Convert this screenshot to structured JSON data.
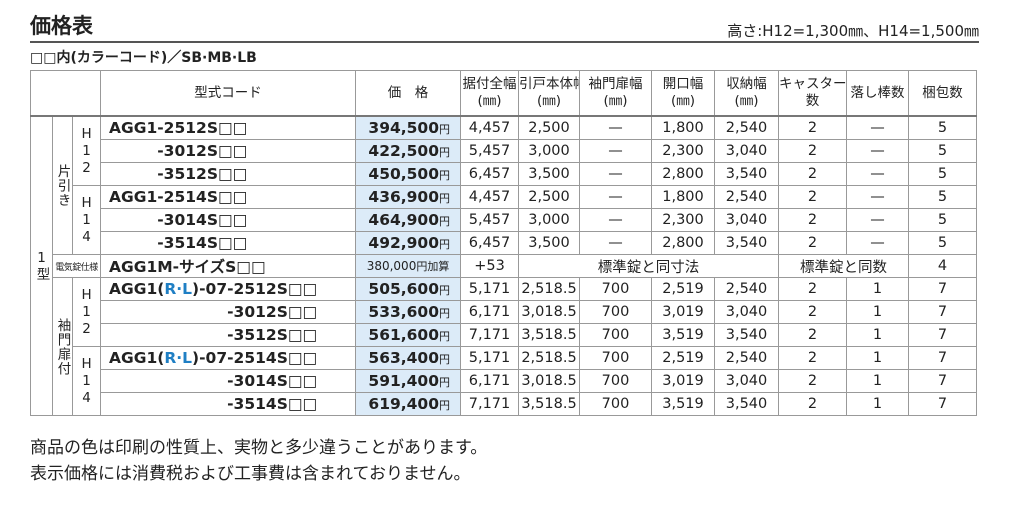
{
  "header": {
    "title": "価格表",
    "height_note": "高さ:H12=1,300㎜、H14=1,500㎜",
    "color_note": "□□内(カラーコード)／SB·MB·LB"
  },
  "table": {
    "columns": [
      [
        "型式コード"
      ],
      [
        "価　格"
      ],
      [
        "据付全幅",
        "(㎜)"
      ],
      [
        "引戸本体幅",
        "(㎜)"
      ],
      [
        "袖門扉幅",
        "(㎜)"
      ],
      [
        "開口幅",
        "(㎜)"
      ],
      [
        "収納幅",
        "(㎜)"
      ],
      [
        "キャスター",
        "数"
      ],
      [
        "落し棒数"
      ],
      [
        "梱包数"
      ]
    ],
    "type_label": "1型",
    "sections": [
      {
        "label": "片引き",
        "heights": [
          {
            "label": "H12",
            "rows": [
              {
                "code": [
                  "AGG1-2512S□□"
                ],
                "price": {
                  "amount": "394,500",
                  "unit": "円"
                },
                "cells": [
                  "4,457",
                  "2,500",
                  "—",
                  "1,800",
                  "2,540",
                  "2",
                  "—",
                  "5"
                ]
              },
              {
                "code": [
                  "-3012S□□"
                ],
                "price": {
                  "amount": "422,500",
                  "unit": "円"
                },
                "cells": [
                  "5,457",
                  "3,000",
                  "—",
                  "2,300",
                  "3,040",
                  "2",
                  "—",
                  "5"
                ]
              },
              {
                "code": [
                  "-3512S□□"
                ],
                "price": {
                  "amount": "450,500",
                  "unit": "円"
                },
                "cells": [
                  "6,457",
                  "3,500",
                  "—",
                  "2,800",
                  "3,540",
                  "2",
                  "—",
                  "5"
                ]
              }
            ]
          },
          {
            "label": "H14",
            "rows": [
              {
                "code": [
                  "AGG1-2514S□□"
                ],
                "price": {
                  "amount": "436,900",
                  "unit": "円"
                },
                "cells": [
                  "4,457",
                  "2,500",
                  "—",
                  "1,800",
                  "2,540",
                  "2",
                  "—",
                  "5"
                ]
              },
              {
                "code": [
                  "-3014S□□"
                ],
                "price": {
                  "amount": "464,900",
                  "unit": "円"
                },
                "cells": [
                  "5,457",
                  "3,000",
                  "—",
                  "2,300",
                  "3,040",
                  "2",
                  "—",
                  "5"
                ]
              },
              {
                "code": [
                  "-3514S□□"
                ],
                "price": {
                  "amount": "492,900",
                  "unit": "円"
                },
                "cells": [
                  "6,457",
                  "3,500",
                  "—",
                  "2,800",
                  "3,540",
                  "2",
                  "—",
                  "5"
                ]
              }
            ]
          }
        ]
      },
      {
        "label": "電気錠仕様",
        "rows": [
          {
            "code": [
              "AGG1M-サイズS□□"
            ],
            "price": {
              "amount": "380,000",
              "unit": "円加算"
            },
            "cells": [
              "+53",
              {
                "text": "標準錠と同寸法",
                "span": 4
              },
              {
                "text": "標準錠と同数",
                "span": 2
              },
              "4"
            ]
          }
        ]
      },
      {
        "label": "袖門扉付",
        "heights": [
          {
            "label": "H12",
            "rows": [
              {
                "code": [
                  "AGG1(",
                  "R·L",
                  ")-07-2512S□□"
                ],
                "highlight": 1,
                "price": {
                  "amount": "505,600",
                  "unit": "円"
                },
                "cells": [
                  "5,171",
                  "2,518.5",
                  "700",
                  "2,519",
                  "2,540",
                  "2",
                  "1",
                  "7"
                ]
              },
              {
                "code": [
                  "-3012S□□"
                ],
                "price": {
                  "amount": "533,600",
                  "unit": "円"
                },
                "cells": [
                  "6,171",
                  "3,018.5",
                  "700",
                  "3,019",
                  "3,040",
                  "2",
                  "1",
                  "7"
                ]
              },
              {
                "code": [
                  "-3512S□□"
                ],
                "price": {
                  "amount": "561,600",
                  "unit": "円"
                },
                "cells": [
                  "7,171",
                  "3,518.5",
                  "700",
                  "3,519",
                  "3,540",
                  "2",
                  "1",
                  "7"
                ]
              }
            ]
          },
          {
            "label": "H14",
            "rows": [
              {
                "code": [
                  "AGG1(",
                  "R·L",
                  ")-07-2514S□□"
                ],
                "highlight": 1,
                "price": {
                  "amount": "563,400",
                  "unit": "円"
                },
                "cells": [
                  "5,171",
                  "2,518.5",
                  "700",
                  "2,519",
                  "2,540",
                  "2",
                  "1",
                  "7"
                ]
              },
              {
                "code": [
                  "-3014S□□"
                ],
                "price": {
                  "amount": "591,400",
                  "unit": "円"
                },
                "cells": [
                  "6,171",
                  "3,018.5",
                  "700",
                  "3,019",
                  "3,040",
                  "2",
                  "1",
                  "7"
                ]
              },
              {
                "code": [
                  "-3514S□□"
                ],
                "price": {
                  "amount": "619,400",
                  "unit": "円"
                },
                "cells": [
                  "7,171",
                  "3,518.5",
                  "700",
                  "3,519",
                  "3,540",
                  "2",
                  "1",
                  "7"
                ]
              }
            ]
          }
        ]
      }
    ]
  },
  "notes": [
    "商品の色は印刷の性質上、実物と多少違うことがあります。",
    "表示価格には消費税および工事費は含まれておりません。"
  ]
}
